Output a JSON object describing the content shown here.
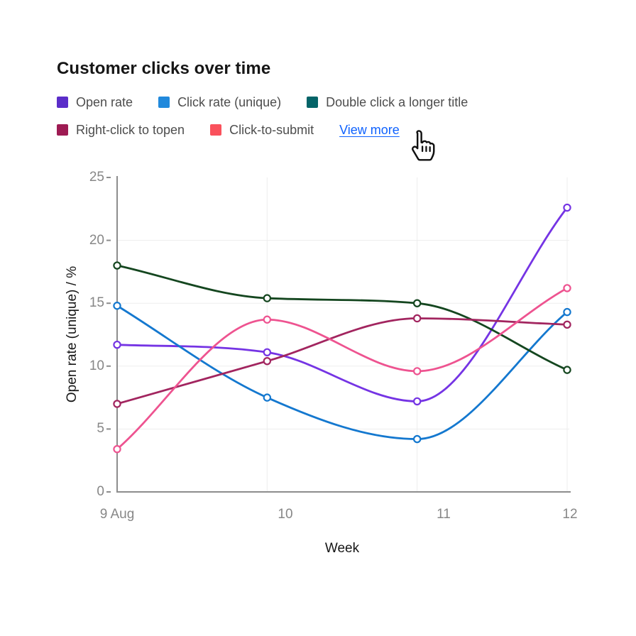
{
  "header": {
    "title": "Customer clicks over time"
  },
  "legend": {
    "items": [
      {
        "label": "Open rate",
        "swatch_color": "#5b2dc9",
        "line_color": "#7534e4"
      },
      {
        "label": "Click rate (unique)",
        "swatch_color": "#2189dc",
        "line_color": "#1478cf"
      },
      {
        "label": "Double click a longer title",
        "swatch_color": "#056468",
        "line_color": "#14461f"
      },
      {
        "label": "Right-click to topen",
        "swatch_color": "#9e1b53",
        "line_color": "#a2255f"
      },
      {
        "label": "Click-to-submit",
        "swatch_color": "#fa515c",
        "line_color": "#ee5390"
      }
    ],
    "view_more_label": "View more",
    "link_color": "#0f62fe"
  },
  "chart_data": {
    "type": "line",
    "title": "Customer clicks over time",
    "x": [
      "9 Aug",
      "10",
      "11",
      "12"
    ],
    "xlabel": "Week",
    "ylabel": "Open rate (unique) / %",
    "ylim": [
      0,
      25
    ],
    "yticks": [
      0,
      5,
      10,
      15,
      20,
      25
    ],
    "grid": true,
    "legend_position": "top",
    "marker": "hollow-circle",
    "series": [
      {
        "name": "Open rate",
        "color": "#7534e4",
        "values": [
          11.7,
          11.1,
          7.2,
          22.6
        ]
      },
      {
        "name": "Click rate (unique)",
        "color": "#1478cf",
        "values": [
          14.8,
          7.5,
          4.2,
          14.3
        ]
      },
      {
        "name": "Double click a longer title",
        "color": "#14461f",
        "values": [
          18.0,
          15.4,
          15.0,
          9.7
        ]
      },
      {
        "name": "Right-click to topen",
        "color": "#a2255f",
        "values": [
          7.0,
          10.4,
          13.8,
          13.3
        ]
      },
      {
        "name": "Click-to-submit",
        "color": "#ee5390",
        "values": [
          3.4,
          13.7,
          9.6,
          16.2
        ]
      }
    ]
  }
}
